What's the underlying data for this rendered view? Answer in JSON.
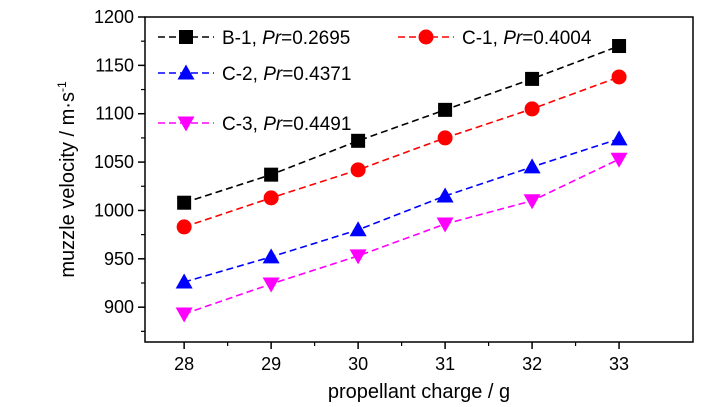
{
  "chart_data": {
    "type": "line",
    "xlabel": "propellant charge / g",
    "ylabel": "muzzle velocity / m·s",
    "ylabel_sup": "-1",
    "xlim": [
      27.55,
      33.85
    ],
    "ylim": [
      864,
      1200
    ],
    "x_ticks": [
      28,
      29,
      30,
      31,
      32,
      33
    ],
    "y_ticks": [
      900,
      950,
      1000,
      1050,
      1100,
      1150,
      1200
    ],
    "grid": false,
    "legend_placement": "top-left, two columns",
    "x": [
      28,
      29,
      30,
      31,
      32,
      33
    ],
    "series": [
      {
        "name": "B-1, Pr=0.2695",
        "label_prefix": "B-1, ",
        "label_italic": "Pr",
        "label_suffix": "=0.2695",
        "values": [
          1008,
          1037,
          1072,
          1104,
          1136,
          1170
        ],
        "color": "#000000",
        "marker": "square"
      },
      {
        "name": "C-1, Pr=0.4004",
        "label_prefix": "C-1, ",
        "label_italic": "Pr",
        "label_suffix": "=0.4004",
        "values": [
          983,
          1013,
          1042,
          1075,
          1105,
          1138
        ],
        "color": "#ff0000",
        "marker": "circle"
      },
      {
        "name": "C-2, Pr=0.4371",
        "label_prefix": "C-2, ",
        "label_italic": "Pr",
        "label_suffix": "=0.4371",
        "values": [
          926,
          952,
          980,
          1015,
          1045,
          1074
        ],
        "color": "#0000ff",
        "marker": "triangle-up"
      },
      {
        "name": "C-3, Pr=0.4491",
        "label_prefix": "C-3, ",
        "label_italic": "Pr",
        "label_suffix": "=0.4491",
        "values": [
          893,
          924,
          953,
          986,
          1010,
          1053
        ],
        "color": "#ff00ff",
        "marker": "triangle-down"
      }
    ]
  }
}
